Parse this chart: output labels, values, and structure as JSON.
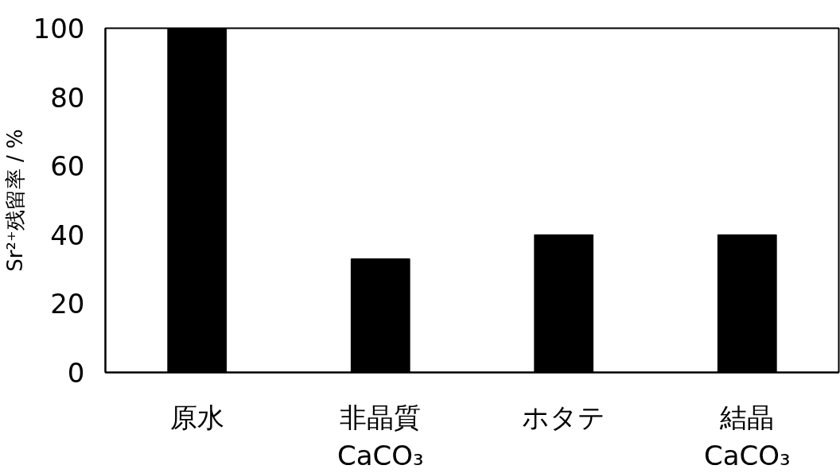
{
  "chart_data": {
    "type": "bar",
    "ylabel": "Sr²⁺残留率 / %",
    "categories": [
      "原水",
      "非晶質\nCaCO₃",
      "ホタテ",
      "結晶\nCaCO₃"
    ],
    "values": [
      100,
      33,
      40,
      40
    ],
    "color": "#000000",
    "ylim": [
      0,
      100
    ],
    "yticks": [
      0,
      20,
      40,
      60,
      80,
      100
    ],
    "grid": false
  }
}
